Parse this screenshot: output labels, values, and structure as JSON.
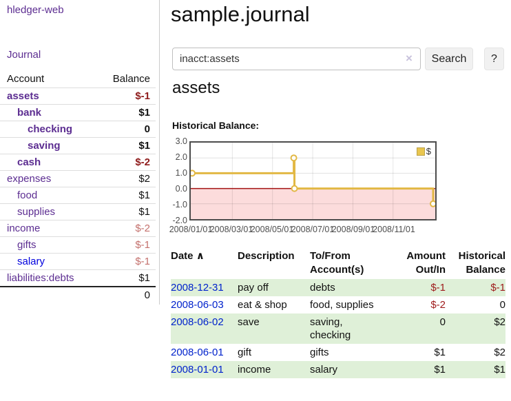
{
  "app": {
    "title": "hledger-web"
  },
  "sidebar": {
    "journal_link": "Journal",
    "table": {
      "headers": {
        "account": "Account",
        "balance": "Balance"
      },
      "rows": [
        {
          "name": "assets",
          "balance": "$-1",
          "indent": 1,
          "bold": true,
          "blue_link": false
        },
        {
          "name": "bank",
          "balance": "$1",
          "indent": 2,
          "bold": true,
          "blue_link": false
        },
        {
          "name": "checking",
          "balance": "0",
          "indent": 3,
          "bold": true,
          "blue_link": false
        },
        {
          "name": "saving",
          "balance": "$1",
          "indent": 3,
          "bold": true,
          "blue_link": false
        },
        {
          "name": "cash",
          "balance": "$-2",
          "indent": 2,
          "bold": true,
          "blue_link": false
        },
        {
          "name": "expenses",
          "balance": "$2",
          "indent": 1,
          "bold": false,
          "blue_link": false
        },
        {
          "name": "food",
          "balance": "$1",
          "indent": 2,
          "bold": false,
          "blue_link": false
        },
        {
          "name": "supplies",
          "balance": "$1",
          "indent": 2,
          "bold": false,
          "blue_link": false
        },
        {
          "name": "income",
          "balance": "$-2",
          "indent": 1,
          "bold": false,
          "blue_link": false
        },
        {
          "name": "gifts",
          "balance": "$-1",
          "indent": 2,
          "bold": false,
          "blue_link": false
        },
        {
          "name": "salary",
          "balance": "$-1",
          "indent": 2,
          "bold": false,
          "blue_link": true
        },
        {
          "name": "liabilities:debts",
          "balance": "$1",
          "indent": 1,
          "bold": false,
          "blue_link": false
        }
      ],
      "total": "0"
    }
  },
  "header": {
    "title": "sample.journal"
  },
  "search": {
    "value": "inacct:assets",
    "clear_icon": "×",
    "button": "Search",
    "help_button": "?"
  },
  "account_page": {
    "heading": "assets",
    "chart_label": "Historical Balance:"
  },
  "chart_data": {
    "type": "line",
    "style": "step",
    "title": "Historical Balance:",
    "legend": [
      {
        "label": "$",
        "color": "#e9c64f"
      }
    ],
    "legend_position": "top-right",
    "grid": true,
    "ylim": [
      -2,
      3
    ],
    "y_ticks": [
      "3.0",
      "2.0",
      "1.0",
      "0.0",
      "-1.0",
      "-2.0"
    ],
    "x_ticks": [
      "2008/01/01",
      "2008/03/01",
      "2008/05/01",
      "2008/07/01",
      "2008/09/01",
      "2008/11/01"
    ],
    "x_range": [
      "2008-01-01",
      "2009-01-01"
    ],
    "series": [
      {
        "name": "$",
        "points": [
          {
            "x": "2008-01-01",
            "y": 1
          },
          {
            "x": "2008-06-02",
            "y": 2
          },
          {
            "x": "2008-06-03",
            "y": 0
          },
          {
            "x": "2008-12-31",
            "y": -1
          }
        ]
      }
    ],
    "negative_region_fill": "#fcdcdc",
    "zero_line_color": "#a21212"
  },
  "register": {
    "headers": [
      "Date",
      "Description",
      "To/From Account(s)",
      "Amount Out/In",
      "Historical Balance"
    ],
    "header_line2": {
      "accounts": "Account(s)",
      "amount": "Out/In",
      "balance": "Balance"
    },
    "header_line1": {
      "date": "Date",
      "description": "Description",
      "accounts": "To/From",
      "amount": "Amount",
      "balance": "Historical"
    },
    "sort_icon": "∧",
    "rows": [
      {
        "date": "2008-12-31",
        "description": "pay off",
        "accounts": "debts",
        "amount": "$-1",
        "balance": "$-1"
      },
      {
        "date": "2008-06-03",
        "description": "eat & shop",
        "accounts": "food, supplies",
        "amount": "$-2",
        "balance": "0"
      },
      {
        "date": "2008-06-02",
        "description": "save",
        "accounts": "saving, checking",
        "amount": "0",
        "balance": "$2"
      },
      {
        "date": "2008-06-01",
        "description": "gift",
        "accounts": "gifts",
        "amount": "$1",
        "balance": "$2"
      },
      {
        "date": "2008-01-01",
        "description": "income",
        "accounts": "salary",
        "amount": "$1",
        "balance": "$1"
      }
    ]
  },
  "colors": {
    "purple": "#5c2d91",
    "blue-link": "#0022cc",
    "neg-bold": "#8e1b1b",
    "neg-light": "#c4716d",
    "stripe-green": "#dff0d8",
    "btn-bg": "#f1f1f1",
    "gold": "#e2b844",
    "pink": "#fcdcdc",
    "zero-red": "#a21212",
    "grid": "#d9d9d9",
    "chart-border": "#4c4c4c",
    "axis-text": "#4d4d4d",
    "divider": "#cccccc"
  }
}
